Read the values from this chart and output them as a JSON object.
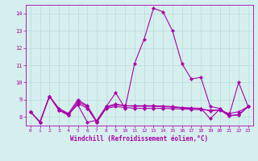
{
  "xlabel": "Windchill (Refroidissement éolien,°C)",
  "background_color": "#d5efee",
  "grid_color": "#b8dcd9",
  "line_color": "#aa00aa",
  "x": [
    0,
    1,
    2,
    3,
    4,
    5,
    6,
    7,
    8,
    9,
    10,
    11,
    12,
    13,
    14,
    15,
    16,
    17,
    18,
    19,
    20,
    21,
    22,
    23
  ],
  "line1": [
    8.3,
    7.7,
    9.2,
    8.5,
    8.2,
    8.7,
    7.7,
    7.8,
    8.6,
    9.4,
    8.5,
    11.1,
    12.5,
    14.3,
    14.1,
    13.0,
    11.1,
    10.2,
    10.3,
    8.6,
    8.5,
    8.1,
    10.0,
    8.6
  ],
  "line2": [
    8.3,
    7.7,
    9.2,
    8.4,
    8.1,
    8.8,
    8.5,
    7.7,
    8.5,
    8.6,
    8.55,
    8.5,
    8.5,
    8.5,
    8.5,
    8.48,
    8.46,
    8.44,
    8.42,
    8.4,
    8.38,
    8.2,
    8.3,
    8.6
  ],
  "line3": [
    8.3,
    7.7,
    9.2,
    8.4,
    8.1,
    8.9,
    8.6,
    7.7,
    8.55,
    8.7,
    8.65,
    8.62,
    8.62,
    8.62,
    8.6,
    8.57,
    8.52,
    8.5,
    8.48,
    8.35,
    8.42,
    8.05,
    8.15,
    8.6
  ],
  "line4": [
    8.3,
    7.7,
    9.2,
    8.4,
    8.2,
    9.0,
    8.65,
    7.75,
    8.6,
    8.75,
    8.65,
    8.65,
    8.65,
    8.65,
    8.63,
    8.6,
    8.55,
    8.52,
    8.5,
    7.9,
    8.45,
    8.1,
    8.1,
    8.6
  ],
  "ylim": [
    7.5,
    14.5
  ],
  "xlim": [
    -0.5,
    23.5
  ],
  "yticks": [
    8,
    9,
    10,
    11,
    12,
    13,
    14
  ],
  "xticks": [
    0,
    1,
    2,
    3,
    4,
    5,
    6,
    7,
    8,
    9,
    10,
    11,
    12,
    13,
    14,
    15,
    16,
    17,
    18,
    19,
    20,
    21,
    22,
    23
  ],
  "xlabel_fontsize": 5.5,
  "tick_fontsize": 5.0,
  "linewidth": 0.8,
  "markersize": 2.2
}
